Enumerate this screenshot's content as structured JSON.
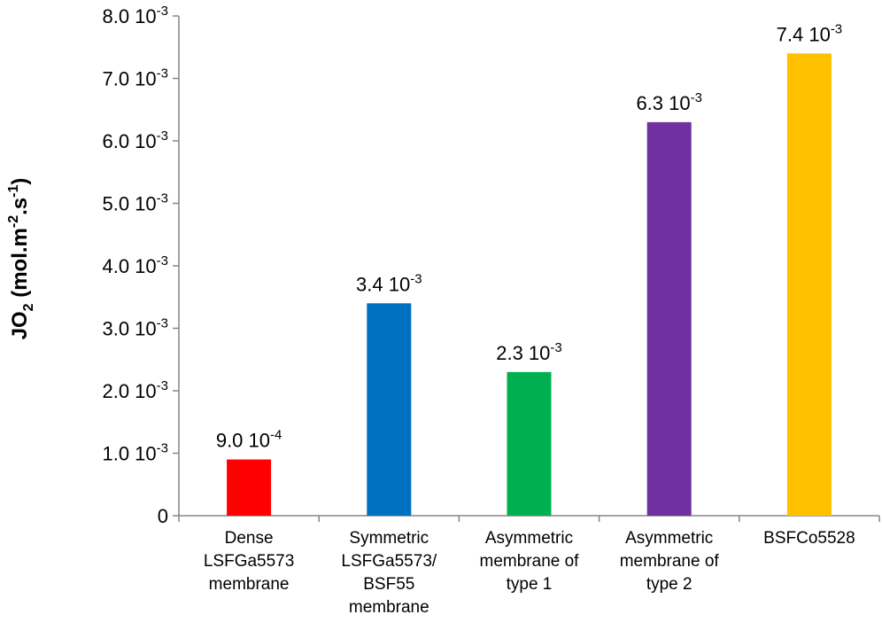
{
  "chart_data": {
    "type": "bar",
    "categories": [
      [
        "Dense",
        "LSFGa5573",
        "membrane"
      ],
      [
        "Symmetric",
        "LSFGa5573/",
        "BSF55",
        "membrane"
      ],
      [
        "Asymmetric",
        "membrane of",
        "type 1"
      ],
      [
        "Asymmetric",
        "membrane of",
        "type 2"
      ],
      [
        "BSFCo5528"
      ]
    ],
    "values": [
      0.0009,
      0.0034,
      0.0023,
      0.0063,
      0.0074
    ],
    "data_labels": [
      {
        "mantissa": "9.0 10",
        "exponent": "-4"
      },
      {
        "mantissa": "3.4 10",
        "exponent": "-3"
      },
      {
        "mantissa": "2.3 10",
        "exponent": "-3"
      },
      {
        "mantissa": "6.3 10",
        "exponent": "-3"
      },
      {
        "mantissa": "7.4 10",
        "exponent": "-3"
      }
    ],
    "colors": [
      "#ff0000",
      "#0070c0",
      "#00b050",
      "#7030a0",
      "#ffc000"
    ],
    "ylim": [
      0,
      0.008
    ],
    "yticks": [
      {
        "value": 0,
        "mantissa": "0",
        "exponent": ""
      },
      {
        "value": 0.001,
        "mantissa": "1.0 10",
        "exponent": "-3"
      },
      {
        "value": 0.002,
        "mantissa": "2.0 10",
        "exponent": "-3"
      },
      {
        "value": 0.003,
        "mantissa": "3.0 10",
        "exponent": "-3"
      },
      {
        "value": 0.004,
        "mantissa": "4.0 10",
        "exponent": "-3"
      },
      {
        "value": 0.005,
        "mantissa": "5.0 10",
        "exponent": "-3"
      },
      {
        "value": 0.006,
        "mantissa": "6.0 10",
        "exponent": "-3"
      },
      {
        "value": 0.007,
        "mantissa": "7.0 10",
        "exponent": "-3"
      },
      {
        "value": 0.008,
        "mantissa": "8.0 10",
        "exponent": "-3"
      }
    ],
    "ylabel": [
      {
        "text": "JO",
        "shift": ""
      },
      {
        "text": "2",
        "shift": "sub"
      },
      {
        "text": " (mol.m",
        "shift": ""
      },
      {
        "text": "-2",
        "shift": "super"
      },
      {
        "text": ".s",
        "shift": ""
      },
      {
        "text": "-1",
        "shift": "super"
      },
      {
        "text": ")",
        "shift": ""
      }
    ],
    "xlabel": "",
    "title": "",
    "grid": false,
    "legend": false
  }
}
